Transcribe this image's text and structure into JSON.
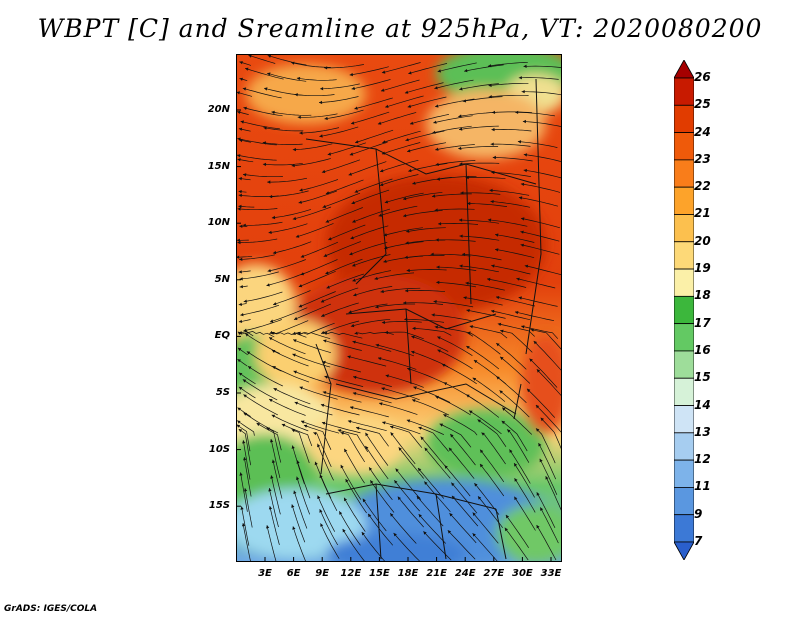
{
  "title": "WBPT [C] and Sreamline at 925hPa, VT: 2020080200",
  "map": {
    "lat_labels": [
      "20N",
      "15N",
      "10N",
      "5N",
      "EQ",
      "5S",
      "10S",
      "15S"
    ],
    "lon_labels": [
      "3E",
      "6E",
      "9E",
      "12E",
      "15E",
      "18E",
      "21E",
      "24E",
      "27E",
      "30E",
      "33E"
    ],
    "lat_range": [
      -20,
      24.5
    ],
    "lon_range": [
      0,
      35
    ]
  },
  "colorbar": {
    "labels": [
      "26",
      "25",
      "24",
      "23",
      "22",
      "21",
      "20",
      "19",
      "18",
      "17",
      "16",
      "15",
      "14",
      "13",
      "12",
      "11",
      "9",
      "7"
    ],
    "colors": [
      "#a50000",
      "#c81a00",
      "#e13c00",
      "#ef5a0a",
      "#f97d1a",
      "#fda32a",
      "#fcc04e",
      "#fdd978",
      "#fbf0a8",
      "#3cb73c",
      "#63c963",
      "#9edd9a",
      "#d6f2d8",
      "#cfe4f6",
      "#a6cdf0",
      "#7db3ea",
      "#5a97e0",
      "#3c79d6",
      "#2a5fcc"
    ]
  },
  "footer": "GrADS: IGES/COLA"
}
